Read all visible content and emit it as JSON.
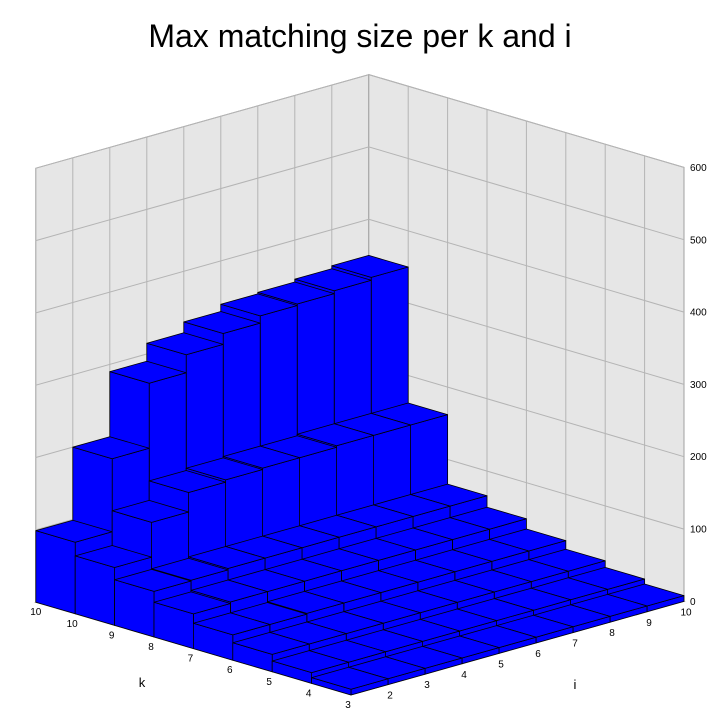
{
  "chart_data": {
    "type": "bar3d",
    "title": "Max matching size per k and i",
    "xlabel": "k",
    "ylabel": "i",
    "zlabel": "",
    "k_values": [
      3,
      4,
      5,
      6,
      7,
      8,
      9,
      10
    ],
    "i_values": [
      2,
      3,
      4,
      5,
      6,
      7,
      8,
      9,
      10
    ],
    "z_range": [
      0,
      600
    ],
    "z_ticks": [
      0,
      100,
      200,
      300,
      400,
      500,
      600
    ],
    "grid": true,
    "bar_color": "#0000ff",
    "wall_color": "#e6e6e6",
    "series": [
      {
        "k": 3,
        "values": [
          8,
          8,
          8,
          8,
          8,
          8,
          8,
          8,
          8
        ]
      },
      {
        "k": 4,
        "values": [
          15,
          15,
          15,
          15,
          15,
          15,
          15,
          15,
          15
        ]
      },
      {
        "k": 5,
        "values": [
          24,
          24,
          24,
          24,
          24,
          24,
          24,
          24,
          24
        ]
      },
      {
        "k": 6,
        "values": [
          35,
          35,
          36,
          36,
          36,
          36,
          36,
          36,
          36
        ]
      },
      {
        "k": 7,
        "values": [
          48,
          50,
          50,
          50,
          50,
          50,
          50,
          50,
          50
        ]
      },
      {
        "k": 8,
        "values": [
          63,
          64,
          66,
          66,
          66,
          66,
          66,
          66,
          66
        ]
      },
      {
        "k": 9,
        "values": [
          80,
          128,
          155,
          158,
          160,
          160,
          162,
          162,
          162
        ]
      },
      {
        "k": 10,
        "values": [
          99,
          200,
          290,
          315,
          330,
          340,
          342,
          346,
          350
        ]
      }
    ]
  }
}
